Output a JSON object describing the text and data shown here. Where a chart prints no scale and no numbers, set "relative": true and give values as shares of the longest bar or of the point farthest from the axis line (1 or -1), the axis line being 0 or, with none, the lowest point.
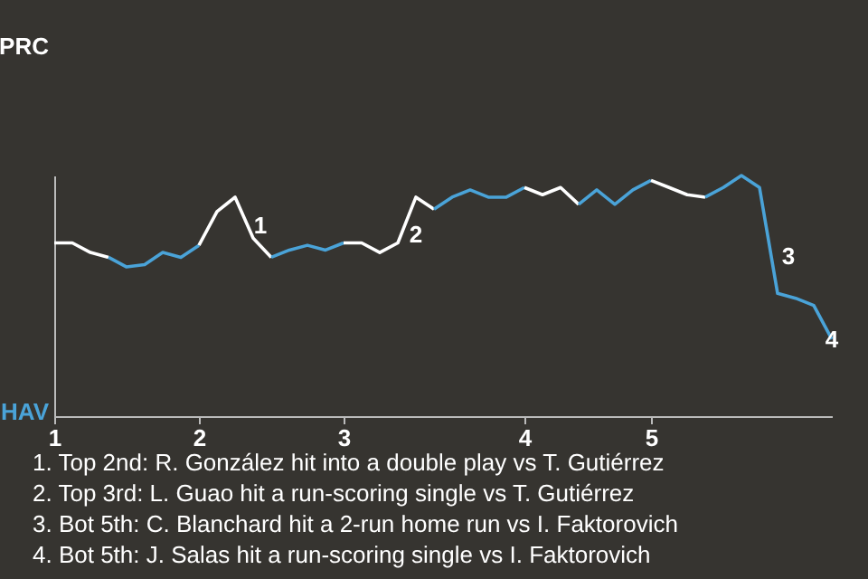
{
  "chart_data": {
    "type": "line",
    "relative": true,
    "categories": [
      "1",
      null,
      null,
      null,
      null,
      null,
      null,
      null,
      "2",
      null,
      null,
      null,
      null,
      null,
      null,
      null,
      "3",
      null,
      null,
      null,
      null,
      null,
      null,
      null,
      null,
      null,
      "4",
      null,
      null,
      null,
      null,
      null,
      null,
      "5",
      null,
      null,
      null,
      null,
      null,
      null,
      null,
      null,
      null,
      null
    ],
    "marker": "none",
    "line_style": "solid",
    "series": [
      {
        "color": "#ffffff",
        "values": [
          0.72,
          0.72,
          0.68,
          0.66,
          null,
          null,
          null,
          null,
          null,
          null,
          null,
          null,
          null,
          null,
          null,
          null,
          null,
          null,
          null,
          null,
          null,
          null,
          null,
          null,
          null,
          null,
          null,
          null,
          null,
          null,
          null,
          null,
          null,
          null,
          null,
          null,
          null,
          null,
          null,
          null,
          null,
          null,
          null,
          null
        ]
      },
      {
        "color": "#4aa3d8",
        "values": [
          null,
          null,
          null,
          0.66,
          0.62,
          0.63,
          0.68,
          0.66,
          0.71,
          null,
          null,
          null,
          null,
          null,
          null,
          null,
          null,
          null,
          null,
          null,
          null,
          null,
          null,
          null,
          null,
          null,
          null,
          null,
          null,
          null,
          null,
          null,
          null,
          null,
          null,
          null,
          null,
          null,
          null,
          null,
          null,
          null,
          null,
          null
        ]
      },
      {
        "color": "#ffffff",
        "values": [
          null,
          null,
          null,
          null,
          null,
          null,
          null,
          null,
          0.71,
          0.85,
          0.91,
          0.74,
          0.66,
          null,
          null,
          null,
          null,
          null,
          null,
          null,
          null,
          null,
          null,
          null,
          null,
          null,
          null,
          null,
          null,
          null,
          null,
          null,
          null,
          null,
          null,
          null,
          null,
          null,
          null,
          null,
          null,
          null,
          null,
          null
        ]
      },
      {
        "color": "#4aa3d8",
        "values": [
          null,
          null,
          null,
          null,
          null,
          null,
          null,
          null,
          null,
          null,
          null,
          null,
          0.66,
          0.69,
          0.71,
          0.69,
          0.72,
          null,
          null,
          null,
          null,
          null,
          null,
          null,
          null,
          null,
          null,
          null,
          null,
          null,
          null,
          null,
          null,
          null,
          null,
          null,
          null,
          null,
          null,
          null,
          null,
          null,
          null,
          null
        ]
      },
      {
        "color": "#ffffff",
        "values": [
          null,
          null,
          null,
          null,
          null,
          null,
          null,
          null,
          null,
          null,
          null,
          null,
          null,
          null,
          null,
          null,
          0.72,
          0.72,
          0.68,
          0.72,
          0.91,
          0.86,
          null,
          null,
          null,
          null,
          null,
          null,
          null,
          null,
          null,
          null,
          null,
          null,
          null,
          null,
          null,
          null,
          null,
          null,
          null,
          null,
          null,
          null
        ]
      },
      {
        "color": "#4aa3d8",
        "values": [
          null,
          null,
          null,
          null,
          null,
          null,
          null,
          null,
          null,
          null,
          null,
          null,
          null,
          null,
          null,
          null,
          null,
          null,
          null,
          null,
          null,
          0.86,
          0.91,
          0.94,
          0.91,
          0.91,
          0.95,
          null,
          null,
          null,
          null,
          null,
          null,
          null,
          null,
          null,
          null,
          null,
          null,
          null,
          null,
          null,
          null,
          null
        ]
      },
      {
        "color": "#ffffff",
        "values": [
          null,
          null,
          null,
          null,
          null,
          null,
          null,
          null,
          null,
          null,
          null,
          null,
          null,
          null,
          null,
          null,
          null,
          null,
          null,
          null,
          null,
          null,
          null,
          null,
          null,
          null,
          0.95,
          0.92,
          0.95,
          0.88,
          null,
          null,
          null,
          null,
          null,
          null,
          null,
          null,
          null,
          null,
          null,
          null,
          null,
          null
        ]
      },
      {
        "color": "#4aa3d8",
        "values": [
          null,
          null,
          null,
          null,
          null,
          null,
          null,
          null,
          null,
          null,
          null,
          null,
          null,
          null,
          null,
          null,
          null,
          null,
          null,
          null,
          null,
          null,
          null,
          null,
          null,
          null,
          null,
          null,
          null,
          0.88,
          0.94,
          0.88,
          0.94,
          0.98,
          null,
          null,
          null,
          null,
          null,
          null,
          null,
          null,
          null,
          null
        ]
      },
      {
        "color": "#ffffff",
        "values": [
          null,
          null,
          null,
          null,
          null,
          null,
          null,
          null,
          null,
          null,
          null,
          null,
          null,
          null,
          null,
          null,
          null,
          null,
          null,
          null,
          null,
          null,
          null,
          null,
          null,
          null,
          null,
          null,
          null,
          null,
          null,
          null,
          null,
          0.98,
          0.95,
          0.92,
          0.91,
          null,
          null,
          null,
          null,
          null,
          null,
          null
        ]
      },
      {
        "color": "#4aa3d8",
        "values": [
          null,
          null,
          null,
          null,
          null,
          null,
          null,
          null,
          null,
          null,
          null,
          null,
          null,
          null,
          null,
          null,
          null,
          null,
          null,
          null,
          null,
          null,
          null,
          null,
          null,
          null,
          null,
          null,
          null,
          null,
          null,
          null,
          null,
          null,
          null,
          null,
          0.91,
          0.95,
          1,
          0.95,
          0.51,
          0.49,
          0.46,
          0.32
        ]
      }
    ],
    "annotations": [
      "1",
      "2",
      "3",
      "4",
      "PRC",
      "HAV",
      "1. Top 2nd: R. González hit into a double play vs T. Gutiérrez",
      "2. Top 3rd: L. Guao hit a run-scoring single vs T. Gutiérrez",
      "3. Bot 5th: C. Blanchard hit a 2-run home run vs I. Faktorovich",
      "4. Bot 5th: J. Salas hit a run-scoring single vs I. Faktorovich"
    ]
  }
}
